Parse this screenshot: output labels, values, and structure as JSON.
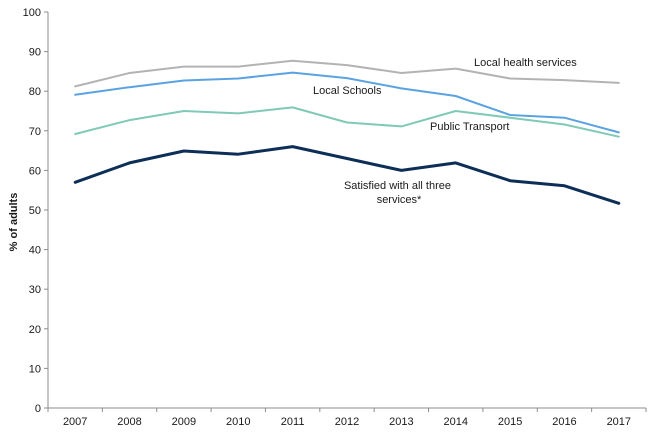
{
  "chart_data": {
    "type": "line",
    "title": "",
    "xlabel": "",
    "ylabel": "% of adults",
    "ylim": [
      0,
      100
    ],
    "yticks": [
      0,
      10,
      20,
      30,
      40,
      50,
      60,
      70,
      80,
      90,
      100
    ],
    "grid": false,
    "legend": "none",
    "x": [
      "2007",
      "2008",
      "2009",
      "2010",
      "2011",
      "2012",
      "2013",
      "2014",
      "2015",
      "2016",
      "2017"
    ],
    "series": [
      {
        "key": "health",
        "name": "Local health services",
        "color": "#b3b3b3",
        "width": 2,
        "values": [
          81.2,
          84.6,
          86.2,
          86.2,
          87.7,
          86.6,
          84.6,
          85.7,
          83.2,
          82.8,
          82.1
        ]
      },
      {
        "key": "schools",
        "name": "Local Schools",
        "color": "#5ba3e0",
        "width": 2,
        "values": [
          79.1,
          81.0,
          82.7,
          83.2,
          84.7,
          83.3,
          80.7,
          78.8,
          74.0,
          73.3,
          69.6
        ]
      },
      {
        "key": "transport",
        "name": "Public Transport",
        "color": "#7fc9b6",
        "width": 2,
        "values": [
          69.2,
          72.7,
          75.0,
          74.4,
          75.9,
          72.1,
          71.1,
          75.0,
          73.3,
          71.6,
          68.5
        ]
      },
      {
        "key": "all",
        "name": "Satisfied with all three services*",
        "label_lines": [
          "Satisfied with all three",
          "services*"
        ],
        "color": "#0d2f57",
        "width": 3,
        "values": [
          57.0,
          61.9,
          64.9,
          64.1,
          66.0,
          63.0,
          60.0,
          61.9,
          57.4,
          56.1,
          51.7
        ]
      }
    ]
  }
}
